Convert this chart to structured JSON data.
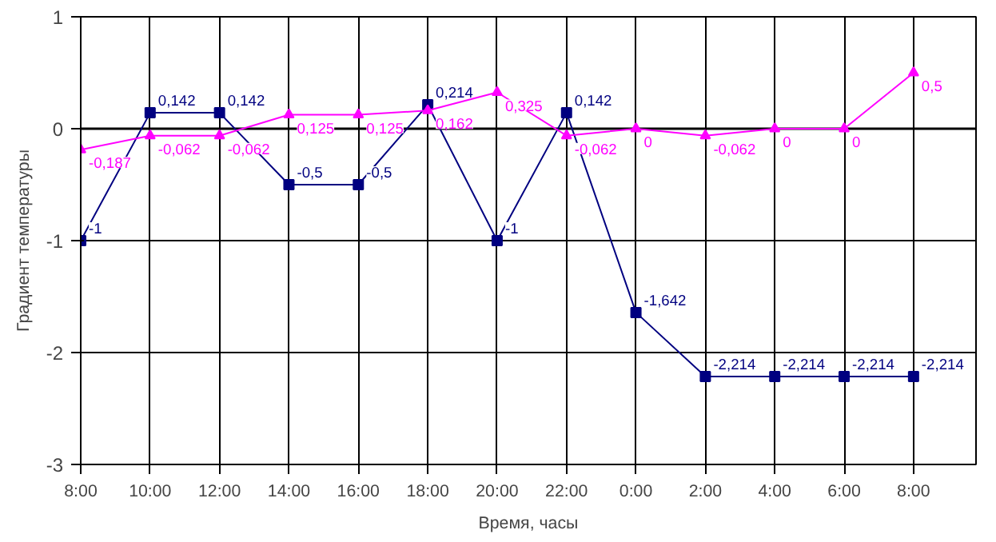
{
  "chart_data": {
    "type": "line",
    "xlabel": "Время, часы",
    "ylabel": "Градиент температуры",
    "categories": [
      "8:00",
      "10:00",
      "12:00",
      "14:00",
      "16:00",
      "18:00",
      "20:00",
      "22:00",
      "0:00",
      "2:00",
      "4:00",
      "6:00",
      "8:00"
    ],
    "series": [
      {
        "color": "#000080",
        "marker": "square",
        "values": [
          -1,
          0.142,
          0.142,
          -0.5,
          -0.5,
          0.214,
          -1,
          0.142,
          -1.642,
          -2.214,
          -2.214,
          -2.214,
          -2.214
        ],
        "value_labels": [
          "-1",
          "0,142",
          "0,142",
          "-0,5",
          "-0,5",
          "0,214",
          "-1",
          "0,142",
          "-1,642",
          "-2,214",
          "-2,214",
          "-2,214",
          "-2,214"
        ]
      },
      {
        "color": "#ff00ff",
        "marker": "triangle",
        "values": [
          -0.187,
          -0.062,
          -0.062,
          0.125,
          0.125,
          0.162,
          0.325,
          -0.062,
          0,
          -0.062,
          0,
          0,
          0.5
        ],
        "value_labels": [
          "-0,187",
          "-0,062",
          "-0,062",
          "0,125",
          "0,125",
          "0,162",
          "0,325",
          "-0,062",
          "0",
          "-0,062",
          "0",
          "0",
          "0,5"
        ]
      }
    ],
    "ylim": [
      -3,
      1
    ],
    "yticks": [
      -3,
      -2,
      -1,
      0,
      1
    ],
    "grid": true
  }
}
